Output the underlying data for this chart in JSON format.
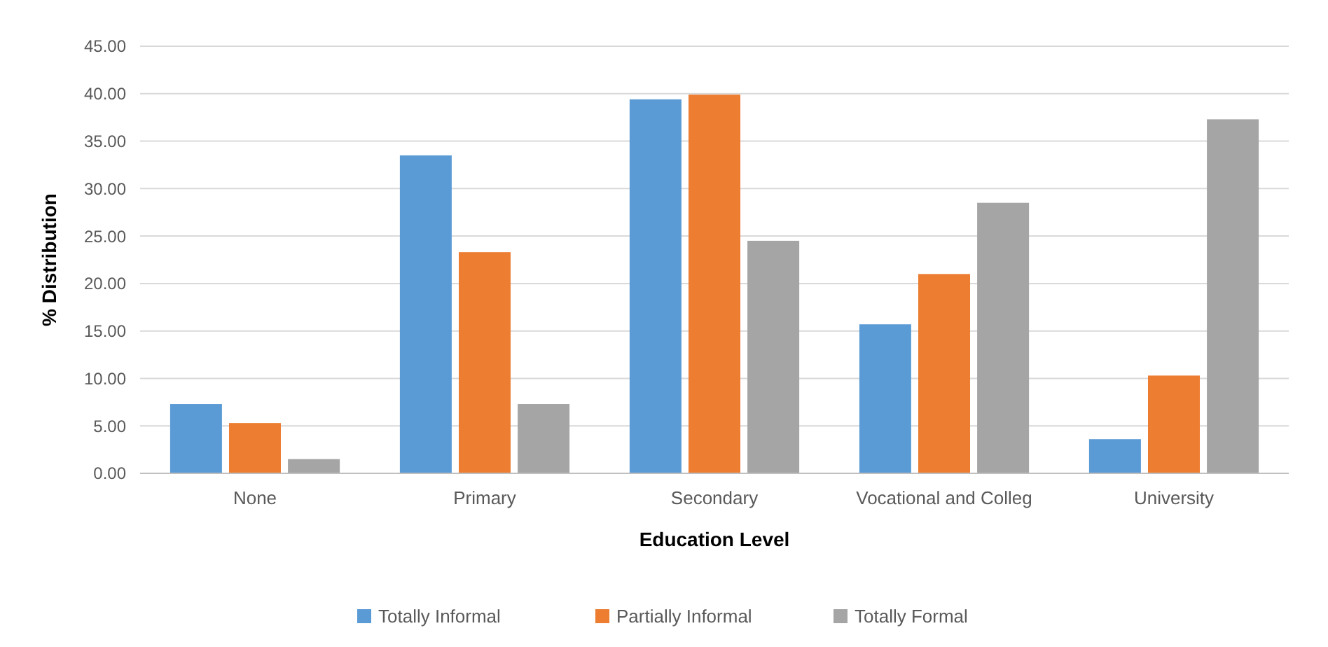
{
  "chart_data": {
    "type": "bar",
    "xlabel": "Education Level",
    "ylabel": "% Distribution",
    "categories": [
      "None",
      "Primary",
      "Secondary",
      "Vocational and Colleg",
      "University"
    ],
    "series": [
      {
        "name": "Totally Informal",
        "color": "#5b9bd5",
        "values": [
          7.3,
          33.5,
          39.4,
          15.7,
          3.6
        ]
      },
      {
        "name": "Partially Informal",
        "color": "#ed7d31",
        "values": [
          5.3,
          23.3,
          39.9,
          21.0,
          10.3
        ]
      },
      {
        "name": "Totally Formal",
        "color": "#a5a5a5",
        "values": [
          1.5,
          7.3,
          24.5,
          28.5,
          37.3
        ]
      }
    ],
    "ylim": [
      0,
      45
    ],
    "yticks": [
      {
        "value": 0,
        "label": "0.00"
      },
      {
        "value": 5,
        "label": "5.00"
      },
      {
        "value": 10,
        "label": "10.00"
      },
      {
        "value": 15,
        "label": "15.00"
      },
      {
        "value": 20,
        "label": "20.00"
      },
      {
        "value": 25,
        "label": "25.00"
      },
      {
        "value": 30,
        "label": "30.00"
      },
      {
        "value": 35,
        "label": "35.00"
      },
      {
        "value": 40,
        "label": "40.00"
      },
      {
        "value": 45,
        "label": "45.00"
      }
    ],
    "grid": "y",
    "legend": "bottom"
  }
}
